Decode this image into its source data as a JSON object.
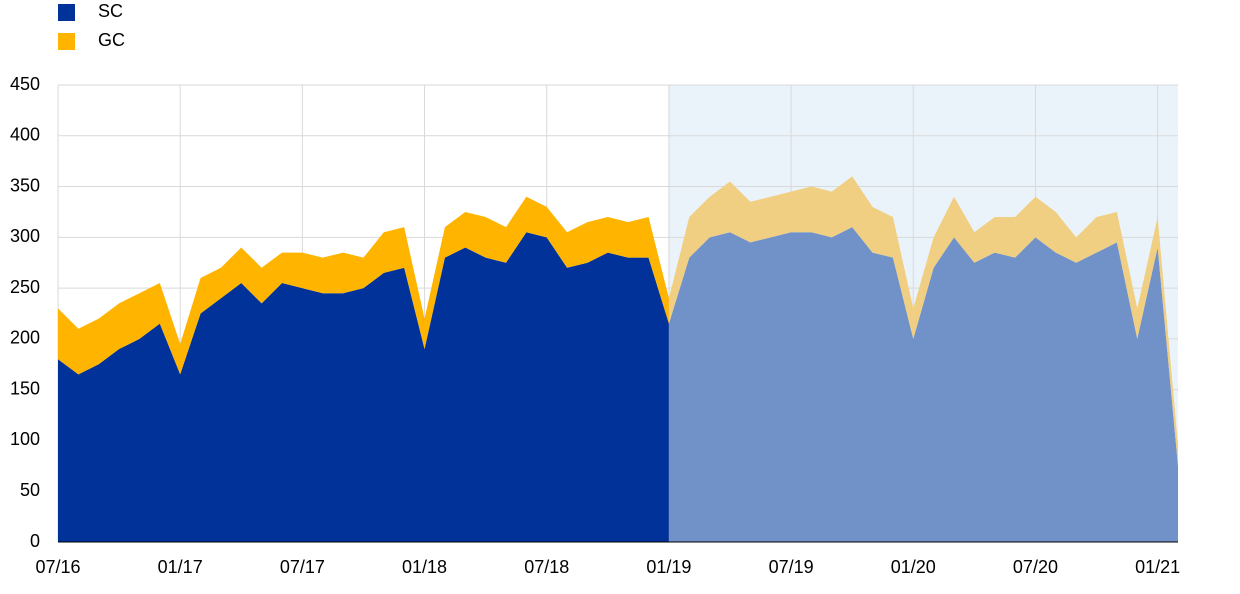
{
  "chart_data": {
    "type": "stacked_area",
    "categories": [
      "07/16",
      null,
      null,
      null,
      null,
      null,
      "01/17",
      null,
      null,
      null,
      null,
      null,
      "07/17",
      null,
      null,
      null,
      null,
      null,
      "01/18",
      null,
      null,
      null,
      null,
      null,
      "07/18",
      null,
      null,
      null,
      null,
      null,
      "01/19",
      null,
      null,
      null,
      null,
      null,
      "07/19",
      null,
      null,
      null,
      null,
      null,
      "01/20",
      null,
      null,
      null,
      null,
      null,
      "07/20",
      null,
      null,
      null,
      null,
      null,
      "01/21",
      null
    ],
    "series": [
      {
        "name": "SC",
        "color": "#003299",
        "shaded_color": "#7191c9",
        "values": [
          180,
          165,
          175,
          190,
          200,
          215,
          165,
          225,
          240,
          255,
          235,
          255,
          250,
          245,
          245,
          250,
          265,
          270,
          190,
          280,
          290,
          280,
          275,
          305,
          300,
          270,
          275,
          285,
          280,
          280,
          215,
          280,
          300,
          305,
          295,
          300,
          305,
          305,
          300,
          310,
          285,
          280,
          200,
          270,
          300,
          275,
          285,
          280,
          300,
          285,
          275,
          285,
          295,
          200,
          290,
          75
        ]
      },
      {
        "name": "GC",
        "color": "#ffb400",
        "shaded_color": "#f0cf82",
        "values": [
          50,
          45,
          45,
          45,
          45,
          40,
          30,
          35,
          30,
          35,
          35,
          30,
          35,
          35,
          40,
          30,
          40,
          40,
          30,
          30,
          35,
          40,
          35,
          35,
          30,
          35,
          40,
          35,
          35,
          40,
          25,
          40,
          40,
          50,
          40,
          40,
          40,
          45,
          45,
          50,
          45,
          40,
          30,
          30,
          40,
          30,
          35,
          40,
          40,
          40,
          25,
          35,
          30,
          30,
          30,
          20
        ]
      }
    ],
    "shaded_from_index": 30,
    "shaded_background": "#ebf3fa",
    "ylim": [
      0,
      450
    ],
    "yticks": [
      0,
      50,
      100,
      150,
      200,
      250,
      300,
      350,
      400,
      450
    ],
    "grid": true
  }
}
